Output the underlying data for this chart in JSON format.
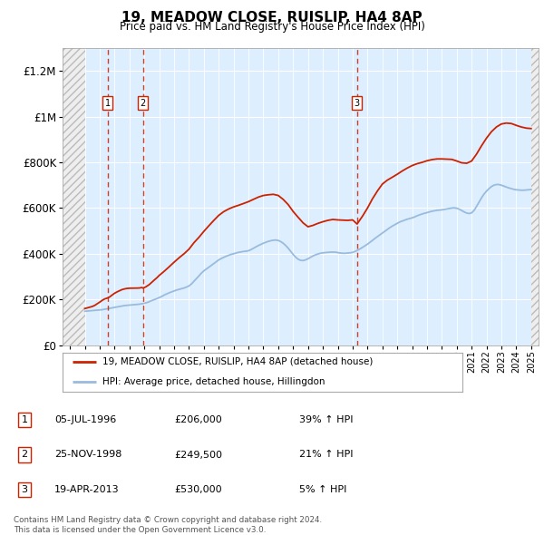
{
  "title": "19, MEADOW CLOSE, RUISLIP, HA4 8AP",
  "subtitle": "Price paid vs. HM Land Registry's House Price Index (HPI)",
  "footer": "Contains HM Land Registry data © Crown copyright and database right 2024.\nThis data is licensed under the Open Government Licence v3.0.",
  "legend_entry1": "19, MEADOW CLOSE, RUISLIP, HA4 8AP (detached house)",
  "legend_entry2": "HPI: Average price, detached house, Hillingdon",
  "transactions": [
    {
      "num": 1,
      "date": "05-JUL-1996",
      "price": "£206,000",
      "change": "39% ↑ HPI",
      "year": 1996.52,
      "price_val": 206000
    },
    {
      "num": 2,
      "date": "25-NOV-1998",
      "price": "£249,500",
      "change": "21% ↑ HPI",
      "year": 1998.9,
      "price_val": 249500
    },
    {
      "num": 3,
      "date": "19-APR-2013",
      "price": "£530,000",
      "change": "5% ↑ HPI",
      "year": 2013.3,
      "price_val": 530000
    }
  ],
  "hpi_line_color": "#99bbdd",
  "property_line_color": "#cc2200",
  "plot_bg_color": "#ddeeff",
  "ylim": [
    0,
    1300000
  ],
  "xlim_start": 1993.5,
  "xlim_end": 2025.5,
  "hatch_left_end": 1995.0,
  "hatch_right_start": 2025.0,
  "yticks": [
    0,
    200000,
    400000,
    600000,
    800000,
    1000000,
    1200000
  ],
  "ylabels": [
    "£0",
    "£200K",
    "£400K",
    "£600K",
    "£800K",
    "£1M",
    "£1.2M"
  ],
  "hpi_years": [
    1995.0,
    1995.17,
    1995.33,
    1995.5,
    1995.67,
    1995.83,
    1996.0,
    1996.17,
    1996.33,
    1996.5,
    1996.67,
    1996.83,
    1997.0,
    1997.17,
    1997.33,
    1997.5,
    1997.67,
    1997.83,
    1998.0,
    1998.17,
    1998.33,
    1998.5,
    1998.67,
    1998.83,
    1999.0,
    1999.17,
    1999.33,
    1999.5,
    1999.67,
    1999.83,
    2000.0,
    2000.17,
    2000.33,
    2000.5,
    2000.67,
    2000.83,
    2001.0,
    2001.17,
    2001.33,
    2001.5,
    2001.67,
    2001.83,
    2002.0,
    2002.17,
    2002.33,
    2002.5,
    2002.67,
    2002.83,
    2003.0,
    2003.17,
    2003.33,
    2003.5,
    2003.67,
    2003.83,
    2004.0,
    2004.17,
    2004.33,
    2004.5,
    2004.67,
    2004.83,
    2005.0,
    2005.17,
    2005.33,
    2005.5,
    2005.67,
    2005.83,
    2006.0,
    2006.17,
    2006.33,
    2006.5,
    2006.67,
    2006.83,
    2007.0,
    2007.17,
    2007.33,
    2007.5,
    2007.67,
    2007.83,
    2008.0,
    2008.17,
    2008.33,
    2008.5,
    2008.67,
    2008.83,
    2009.0,
    2009.17,
    2009.33,
    2009.5,
    2009.67,
    2009.83,
    2010.0,
    2010.17,
    2010.33,
    2010.5,
    2010.67,
    2010.83,
    2011.0,
    2011.17,
    2011.33,
    2011.5,
    2011.67,
    2011.83,
    2012.0,
    2012.17,
    2012.33,
    2012.5,
    2012.67,
    2012.83,
    2013.0,
    2013.17,
    2013.33,
    2013.5,
    2013.67,
    2013.83,
    2014.0,
    2014.17,
    2014.33,
    2014.5,
    2014.67,
    2014.83,
    2015.0,
    2015.17,
    2015.33,
    2015.5,
    2015.67,
    2015.83,
    2016.0,
    2016.17,
    2016.33,
    2016.5,
    2016.67,
    2016.83,
    2017.0,
    2017.17,
    2017.33,
    2017.5,
    2017.67,
    2017.83,
    2018.0,
    2018.17,
    2018.33,
    2018.5,
    2018.67,
    2018.83,
    2019.0,
    2019.17,
    2019.33,
    2019.5,
    2019.67,
    2019.83,
    2020.0,
    2020.17,
    2020.33,
    2020.5,
    2020.67,
    2020.83,
    2021.0,
    2021.17,
    2021.33,
    2021.5,
    2021.67,
    2021.83,
    2022.0,
    2022.17,
    2022.33,
    2022.5,
    2022.67,
    2022.83,
    2023.0,
    2023.17,
    2023.33,
    2023.5,
    2023.67,
    2023.83,
    2024.0,
    2024.17,
    2024.33,
    2024.5,
    2024.67,
    2024.83,
    2025.0
  ],
  "hpi_values": [
    148000,
    149000,
    150000,
    151000,
    152000,
    153000,
    154000,
    155000,
    157000,
    159000,
    161000,
    163000,
    165000,
    167000,
    169000,
    171000,
    173000,
    174000,
    175000,
    176000,
    177000,
    178000,
    179000,
    181000,
    183000,
    186000,
    190000,
    195000,
    199000,
    203000,
    208000,
    213000,
    219000,
    224000,
    229000,
    233000,
    237000,
    241000,
    244000,
    247000,
    250000,
    254000,
    259000,
    268000,
    279000,
    291000,
    303000,
    315000,
    325000,
    333000,
    341000,
    349000,
    357000,
    365000,
    373000,
    379000,
    384000,
    389000,
    393000,
    397000,
    400000,
    403000,
    406000,
    408000,
    410000,
    411000,
    413000,
    418000,
    424000,
    430000,
    436000,
    441000,
    446000,
    450000,
    454000,
    457000,
    459000,
    460000,
    458000,
    453000,
    446000,
    436000,
    424000,
    411000,
    397000,
    385000,
    376000,
    371000,
    370000,
    373000,
    378000,
    384000,
    390000,
    395000,
    399000,
    402000,
    404000,
    405000,
    406000,
    407000,
    407000,
    407000,
    405000,
    403000,
    402000,
    402000,
    403000,
    404000,
    406000,
    410000,
    415000,
    421000,
    428000,
    435000,
    442000,
    450000,
    458000,
    467000,
    475000,
    482000,
    490000,
    498000,
    506000,
    514000,
    521000,
    527000,
    533000,
    539000,
    543000,
    547000,
    551000,
    554000,
    557000,
    561000,
    566000,
    570000,
    574000,
    577000,
    580000,
    583000,
    586000,
    588000,
    590000,
    591000,
    592000,
    594000,
    596000,
    598000,
    600000,
    601000,
    599000,
    595000,
    589000,
    583000,
    578000,
    576000,
    579000,
    590000,
    607000,
    626000,
    645000,
    661000,
    674000,
    685000,
    694000,
    700000,
    703000,
    703000,
    700000,
    696000,
    692000,
    688000,
    685000,
    682000,
    680000,
    679000,
    678000,
    678000,
    679000,
    680000,
    681000
  ],
  "prop_years": [
    1995.0,
    1995.17,
    1995.33,
    1995.5,
    1995.67,
    1995.83,
    1996.0,
    1996.17,
    1996.33,
    1996.52,
    1996.67,
    1996.83,
    1997.0,
    1997.17,
    1997.33,
    1997.5,
    1997.67,
    1997.83,
    1998.0,
    1998.17,
    1998.33,
    1998.5,
    1998.67,
    1998.83,
    1998.9,
    1999.1,
    1999.33,
    1999.5,
    1999.67,
    1999.83,
    2000.0,
    2000.33,
    2000.67,
    2001.0,
    2001.33,
    2001.67,
    2002.0,
    2002.33,
    2002.67,
    2003.0,
    2003.33,
    2003.67,
    2004.0,
    2004.33,
    2004.67,
    2005.0,
    2005.33,
    2005.67,
    2006.0,
    2006.33,
    2006.67,
    2007.0,
    2007.33,
    2007.67,
    2008.0,
    2008.33,
    2008.67,
    2009.0,
    2009.33,
    2009.67,
    2010.0,
    2010.33,
    2010.67,
    2011.0,
    2011.33,
    2011.67,
    2012.0,
    2012.33,
    2012.67,
    2013.0,
    2013.3,
    2013.67,
    2014.0,
    2014.33,
    2014.67,
    2015.0,
    2015.33,
    2015.67,
    2016.0,
    2016.33,
    2016.67,
    2017.0,
    2017.33,
    2017.67,
    2018.0,
    2018.33,
    2018.67,
    2019.0,
    2019.33,
    2019.67,
    2020.0,
    2020.33,
    2020.67,
    2021.0,
    2021.33,
    2021.67,
    2022.0,
    2022.33,
    2022.67,
    2023.0,
    2023.33,
    2023.67,
    2024.0,
    2024.33,
    2024.67,
    2025.0
  ],
  "prop_values": [
    160000,
    163000,
    166000,
    169000,
    174000,
    181000,
    188000,
    196000,
    202000,
    206000,
    211000,
    219000,
    227000,
    233000,
    238000,
    243000,
    246000,
    248000,
    249000,
    249200,
    249400,
    249500,
    250000,
    252000,
    249500,
    255000,
    265000,
    275000,
    285000,
    294000,
    305000,
    323000,
    343000,
    363000,
    382000,
    400000,
    420000,
    448000,
    472000,
    498000,
    522000,
    546000,
    568000,
    584000,
    596000,
    605000,
    612000,
    620000,
    628000,
    638000,
    648000,
    655000,
    658000,
    660000,
    655000,
    638000,
    615000,
    585000,
    560000,
    535000,
    518000,
    524000,
    533000,
    540000,
    546000,
    550000,
    548000,
    547000,
    546000,
    548000,
    530000,
    565000,
    600000,
    640000,
    675000,
    705000,
    722000,
    735000,
    748000,
    762000,
    775000,
    786000,
    794000,
    800000,
    807000,
    812000,
    815000,
    815000,
    814000,
    813000,
    806000,
    798000,
    796000,
    806000,
    836000,
    873000,
    906000,
    934000,
    955000,
    968000,
    972000,
    970000,
    962000,
    955000,
    950000,
    948000
  ]
}
